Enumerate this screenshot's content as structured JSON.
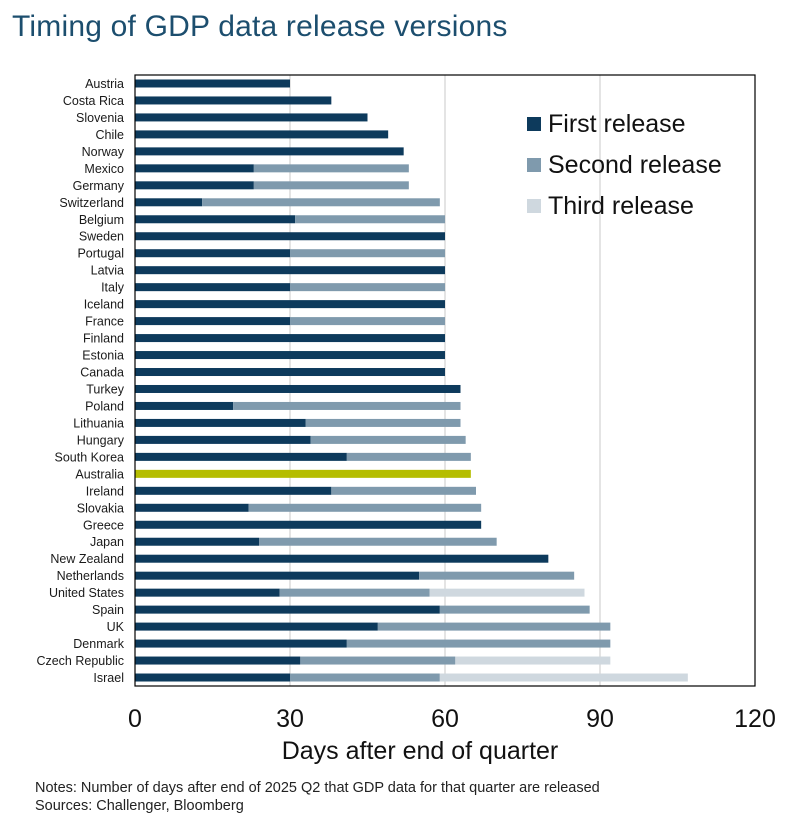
{
  "title": "Timing of GDP data release versions",
  "notes": "Notes: Number  of days after end of 2025 Q2 that GDP data for that quarter are released",
  "sources": "Sources: Challenger, Bloomberg",
  "chart_data": {
    "type": "bar",
    "orientation": "horizontal",
    "stacked": true,
    "xlabel": "Days after end of quarter",
    "xlim": [
      0,
      120
    ],
    "xticks": [
      0,
      30,
      60,
      90,
      120
    ],
    "grid": true,
    "legend_position": "top-right",
    "colors": {
      "first": "#0d3a5c",
      "second": "#7f9aad",
      "third": "#cfd8df",
      "highlight": "#b5bd00"
    },
    "highlight_category": "Australia",
    "series": [
      {
        "key": "first",
        "name": "First release"
      },
      {
        "key": "second",
        "name": "Second release"
      },
      {
        "key": "third",
        "name": "Third release"
      }
    ],
    "data": [
      {
        "country": "Austria",
        "first": 30,
        "second": null,
        "third": null
      },
      {
        "country": "Costa Rica",
        "first": 38,
        "second": null,
        "third": null
      },
      {
        "country": "Slovenia",
        "first": 45,
        "second": null,
        "third": null
      },
      {
        "country": "Chile",
        "first": 49,
        "second": null,
        "third": null
      },
      {
        "country": "Norway",
        "first": 52,
        "second": null,
        "third": null
      },
      {
        "country": "Mexico",
        "first": 23,
        "second": 53,
        "third": null
      },
      {
        "country": "Germany",
        "first": 23,
        "second": 53,
        "third": null
      },
      {
        "country": "Switzerland",
        "first": 13,
        "second": 59,
        "third": null
      },
      {
        "country": "Belgium",
        "first": 31,
        "second": 60,
        "third": null
      },
      {
        "country": "Sweden",
        "first": 60,
        "second": null,
        "third": null
      },
      {
        "country": "Portugal",
        "first": 30,
        "second": 60,
        "third": null
      },
      {
        "country": "Latvia",
        "first": 60,
        "second": null,
        "third": null
      },
      {
        "country": "Italy",
        "first": 30,
        "second": 60,
        "third": null
      },
      {
        "country": "Iceland",
        "first": 60,
        "second": null,
        "third": null
      },
      {
        "country": "France",
        "first": 30,
        "second": 60,
        "third": null
      },
      {
        "country": "Finland",
        "first": 60,
        "second": null,
        "third": null
      },
      {
        "country": "Estonia",
        "first": 60,
        "second": null,
        "third": null
      },
      {
        "country": "Canada",
        "first": 60,
        "second": null,
        "third": null
      },
      {
        "country": "Turkey",
        "first": 63,
        "second": null,
        "third": null
      },
      {
        "country": "Poland",
        "first": 19,
        "second": 63,
        "third": null
      },
      {
        "country": "Lithuania",
        "first": 33,
        "second": 63,
        "third": null
      },
      {
        "country": "Hungary",
        "first": 34,
        "second": 64,
        "third": null
      },
      {
        "country": "South Korea",
        "first": 41,
        "second": 65,
        "third": null
      },
      {
        "country": "Australia",
        "first": 65,
        "second": null,
        "third": null
      },
      {
        "country": "Ireland",
        "first": 38,
        "second": 66,
        "third": null
      },
      {
        "country": "Slovakia",
        "first": 22,
        "second": 67,
        "third": null
      },
      {
        "country": "Greece",
        "first": 67,
        "second": null,
        "third": null
      },
      {
        "country": "Japan",
        "first": 24,
        "second": 70,
        "third": null
      },
      {
        "country": "New Zealand",
        "first": 80,
        "second": null,
        "third": null
      },
      {
        "country": "Netherlands",
        "first": 55,
        "second": 85,
        "third": null
      },
      {
        "country": "United States",
        "first": 28,
        "second": 57,
        "third": 87
      },
      {
        "country": "Spain",
        "first": 59,
        "second": 88,
        "third": null
      },
      {
        "country": "UK",
        "first": 47,
        "second": 92,
        "third": null
      },
      {
        "country": "Denmark",
        "first": 41,
        "second": 92,
        "third": null
      },
      {
        "country": "Czech Republic",
        "first": 32,
        "second": 62,
        "third": 92
      },
      {
        "country": "Israel",
        "first": 30,
        "second": 59,
        "third": 107
      }
    ]
  }
}
